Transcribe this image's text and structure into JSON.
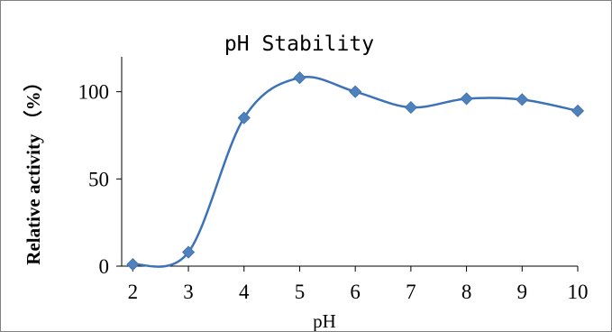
{
  "chart_data": {
    "type": "line",
    "title": "pH Stability",
    "xlabel": "pH",
    "ylabel": "Relative activity （%）",
    "x": [
      2,
      3,
      4,
      5,
      6,
      7,
      8,
      9,
      10
    ],
    "xticks": [
      "2",
      "3",
      "4",
      "5",
      "6",
      "7",
      "8",
      "9",
      "10"
    ],
    "yticks": [
      "0",
      "50",
      "100"
    ],
    "xlim": [
      1.8,
      10
    ],
    "ylim": [
      0,
      120
    ],
    "series": [
      {
        "values": [
          1,
          8,
          85,
          108,
          100,
          91,
          96,
          95.5,
          89
        ]
      }
    ],
    "smooth": true,
    "grid": false,
    "marker": "diamond",
    "color": "#4f81bd"
  }
}
